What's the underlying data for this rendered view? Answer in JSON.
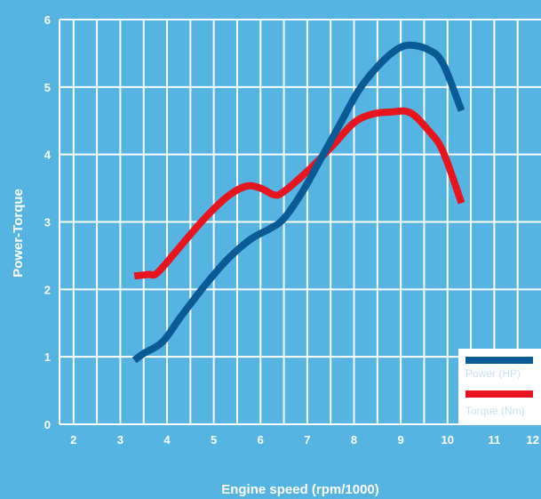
{
  "chart_data": {
    "type": "line",
    "title": "",
    "xlabel": "Engine speed (rpm/1000)",
    "ylabel": "Power-Torque",
    "xlim": [
      1.7,
      12
    ],
    "ylim": [
      0,
      6
    ],
    "x_ticks": [
      "2",
      "3",
      "4",
      "5",
      "6",
      "7",
      "8",
      "9",
      "10",
      "11",
      "12"
    ],
    "y_ticks": [
      "0",
      "1",
      "2",
      "3",
      "4",
      "5",
      "6"
    ],
    "grid": true,
    "legend_position": "bottom-right",
    "series": [
      {
        "name": "Power (HP)",
        "color": "#0a5a96",
        "x": [
          3.3,
          3.5,
          3.9,
          4.3,
          4.8,
          5.3,
          5.8,
          6.2,
          6.5,
          6.9,
          7.3,
          7.7,
          8.1,
          8.5,
          8.9,
          9.2,
          9.6,
          9.9,
          10.3
        ],
        "y": [
          0.95,
          1.05,
          1.22,
          1.6,
          2.05,
          2.45,
          2.75,
          2.9,
          3.05,
          3.45,
          3.95,
          4.45,
          4.95,
          5.3,
          5.55,
          5.62,
          5.55,
          5.35,
          4.65
        ]
      },
      {
        "name": "Torque (Nm)",
        "color": "#e8141e",
        "x": [
          3.3,
          3.6,
          3.8,
          4.3,
          4.8,
          5.3,
          5.7,
          6.0,
          6.3,
          6.5,
          7.0,
          7.5,
          8.0,
          8.4,
          8.8,
          9.2,
          9.6,
          9.9,
          10.3
        ],
        "y": [
          2.2,
          2.22,
          2.25,
          2.65,
          3.05,
          3.38,
          3.53,
          3.5,
          3.4,
          3.45,
          3.75,
          4.1,
          4.47,
          4.6,
          4.63,
          4.62,
          4.35,
          4.05,
          3.28
        ]
      }
    ]
  }
}
